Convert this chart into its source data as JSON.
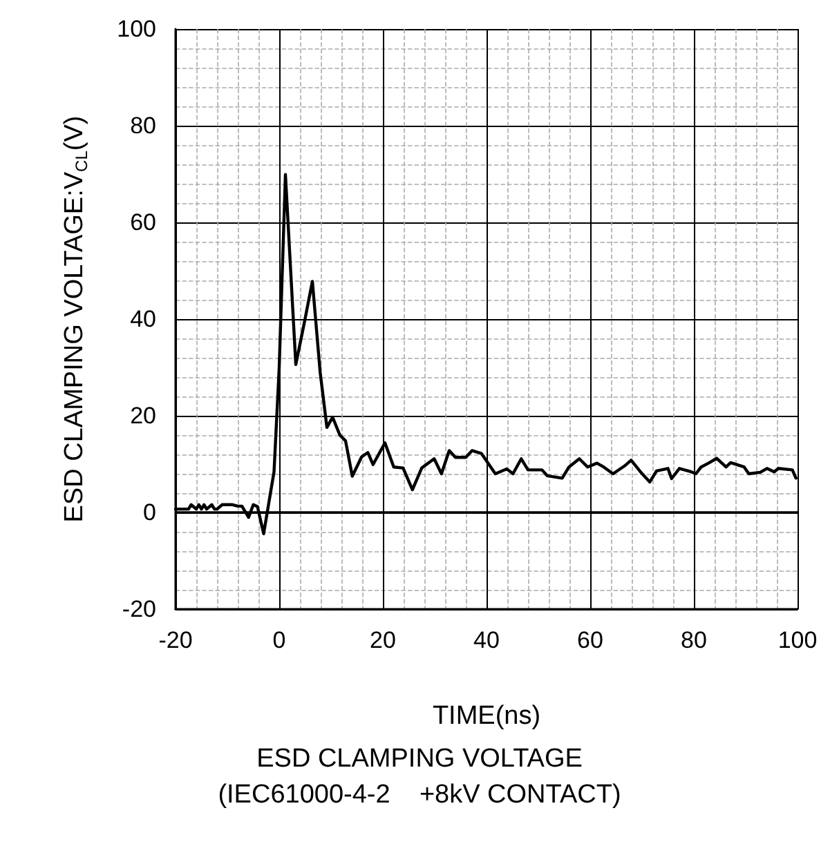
{
  "chart_data": {
    "type": "line",
    "title": "ESD CLAMPING VOLTAGE",
    "subtitle": "(IEC61000-4-2    +8kV CONTACT)",
    "xlabel": "TIME(ns)",
    "ylabel": "ESD CLAMPING VOLTAGE:V$_{CL}$(V)",
    "xlim": [
      -20,
      100
    ],
    "xticks": [
      -20,
      0,
      20,
      40,
      60,
      80,
      100
    ],
    "ylim": [
      -20,
      100
    ],
    "yticks": [
      -20,
      0,
      20,
      40,
      60,
      80,
      100
    ],
    "grid": true,
    "marker": "none",
    "line_style": "solid",
    "ref_lines": [
      {
        "axis": "y",
        "value": 0,
        "label": null,
        "color": "#000000"
      }
    ],
    "series": [
      {
        "color": "#000000",
        "x": [
          -20,
          -17.5,
          -17,
          -16,
          -15.5,
          -15,
          -14.5,
          -14,
          -13,
          -12.5,
          -12,
          -11,
          -10,
          -9,
          -8,
          -7.2,
          -5.9,
          -5,
          -4.2,
          -3,
          -1,
          0,
          1.2,
          3.2,
          4.8,
          6.4,
          7.9,
          9.2,
          10.3,
          11.7,
          12.8,
          14.1,
          15.9,
          17.1,
          18.1,
          20.4,
          22.1,
          23.9,
          25.7,
          27.5,
          29.9,
          31.3,
          32.8,
          34,
          36,
          37.2,
          39,
          41.7,
          43.9,
          45.1,
          46.7,
          48,
          50.7,
          51.7,
          54.6,
          55.9,
          57.9,
          59.5,
          61.3,
          62.6,
          64.4,
          66.6,
          67.9,
          69.7,
          71.5,
          72.8,
          75,
          75.7,
          77.2,
          79.5,
          80.4,
          81.4,
          83,
          84.4,
          86.2,
          87.1,
          89.7,
          90.6,
          92.8,
          94.1,
          95.5,
          96.3,
          99,
          99.7
        ],
        "values": [
          0.7,
          0.7,
          1.6,
          0.7,
          1.6,
          0.7,
          1.6,
          0.7,
          1.6,
          0.7,
          0.7,
          1.6,
          1.6,
          1.6,
          1.3,
          1.3,
          -1,
          1.6,
          1.2,
          -4.4,
          8.4,
          30,
          69.9,
          30.6,
          39,
          47.8,
          29,
          17.6,
          19.7,
          16,
          14.8,
          7.5,
          11.5,
          12.4,
          9.9,
          14.4,
          9.4,
          9.2,
          4.7,
          9.2,
          11.1,
          8,
          12.8,
          11.4,
          11.4,
          12.8,
          12.2,
          8,
          9,
          8,
          11.1,
          8.8,
          8.8,
          7.6,
          7.1,
          9.4,
          11.1,
          9.4,
          10.2,
          9.4,
          8,
          9.6,
          10.8,
          8.4,
          6.3,
          8.6,
          9.1,
          7,
          9.1,
          8.4,
          8,
          9.4,
          10.3,
          11.2,
          9.4,
          10.3,
          9.4,
          8,
          8.3,
          9.1,
          8.4,
          9.1,
          8.8,
          7.1
        ]
      }
    ]
  }
}
